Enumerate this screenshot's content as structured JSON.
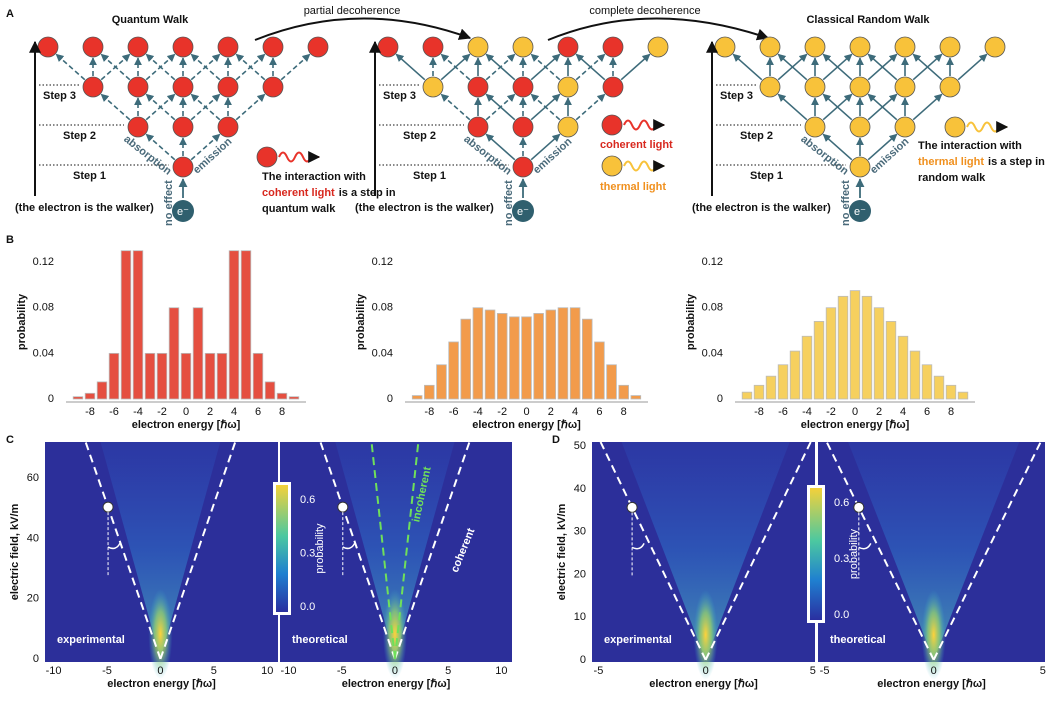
{
  "panel_a": {
    "label": "A",
    "titles": [
      "Quantum Walk",
      "Classical Random Walk"
    ],
    "transitions": [
      "partial decoherence",
      "complete decoherence"
    ],
    "lattices": [
      {
        "steps": [
          "Step 1",
          "Step 2",
          "Step 3"
        ],
        "absorption": "absorption",
        "emission": "emission",
        "no_effect": "no effect",
        "electron": "e⁻",
        "walker": "(the electron is the walker)"
      },
      {
        "steps": [
          "Step 1",
          "Step 2",
          "Step 3"
        ],
        "absorption": "absorption",
        "emission": "emission",
        "no_effect": "no effect",
        "electron": "e⁻",
        "walker": "(the electron is the walker)"
      },
      {
        "steps": [
          "Step 1",
          "Step 2",
          "Step 3"
        ],
        "absorption": "absorption",
        "emission": "emission",
        "no_effect": "no effect",
        "electron": "e⁻",
        "walker": "(the electron is the walker)"
      }
    ],
    "caption_coherent": [
      "The   interaction   with",
      "coherent light",
      "is a step in",
      "quantum walk"
    ],
    "legend": [
      "coherent light",
      "thermal light"
    ],
    "caption_thermal": [
      "The   interaction   with",
      "thermal light",
      "is a step in",
      "random walk"
    ]
  },
  "panel_b": {
    "label": "B"
  },
  "chart_data": [
    {
      "type": "bar",
      "x": [
        -9,
        -8,
        -7,
        -6,
        -5,
        -4,
        -3,
        -2,
        -1,
        0,
        1,
        2,
        3,
        4,
        5,
        6,
        7,
        8,
        9
      ],
      "values": [
        0.002,
        0.005,
        0.015,
        0.04,
        0.13,
        0.13,
        0.04,
        0.04,
        0.08,
        0.04,
        0.08,
        0.04,
        0.04,
        0.13,
        0.13,
        0.04,
        0.015,
        0.005,
        0.002
      ],
      "color": "#e0301e",
      "xlim": [
        -10,
        10
      ],
      "ylim": [
        0,
        0.135
      ],
      "xticks": [
        -8,
        -6,
        -4,
        -2,
        0,
        2,
        4,
        6,
        8
      ],
      "yticks": [
        0,
        0.04,
        0.08,
        0.12
      ],
      "xlabel": "electron energy [ℏω]",
      "ylabel": "probability"
    },
    {
      "type": "bar",
      "x": [
        -9,
        -8,
        -7,
        -6,
        -5,
        -4,
        -3,
        -2,
        -1,
        0,
        1,
        2,
        3,
        4,
        5,
        6,
        7,
        8,
        9
      ],
      "values": [
        0.003,
        0.012,
        0.03,
        0.05,
        0.07,
        0.08,
        0.078,
        0.075,
        0.072,
        0.072,
        0.075,
        0.078,
        0.08,
        0.08,
        0.07,
        0.05,
        0.03,
        0.012,
        0.003
      ],
      "color": "#f08a2c",
      "xlim": [
        -10,
        10
      ],
      "ylim": [
        0,
        0.135
      ],
      "xticks": [
        -8,
        -6,
        -4,
        -2,
        0,
        2,
        4,
        6,
        8
      ],
      "yticks": [
        0,
        0.04,
        0.08,
        0.12
      ],
      "xlabel": "electron energy [ℏω]",
      "ylabel": "probability"
    },
    {
      "type": "bar",
      "x": [
        -9,
        -8,
        -7,
        -6,
        -5,
        -4,
        -3,
        -2,
        -1,
        0,
        1,
        2,
        3,
        4,
        5,
        6,
        7,
        8,
        9
      ],
      "values": [
        0.006,
        0.012,
        0.02,
        0.03,
        0.042,
        0.055,
        0.068,
        0.08,
        0.09,
        0.095,
        0.09,
        0.08,
        0.068,
        0.055,
        0.042,
        0.03,
        0.02,
        0.012,
        0.006
      ],
      "color": "#f5c842",
      "xlim": [
        -10,
        10
      ],
      "ylim": [
        0,
        0.135
      ],
      "xticks": [
        -8,
        -6,
        -4,
        -2,
        0,
        2,
        4,
        6,
        8
      ],
      "yticks": [
        0,
        0.04,
        0.08,
        0.12
      ],
      "xlabel": "electron energy [ℏω]",
      "ylabel": "probability"
    }
  ],
  "panel_c": {
    "label": "C",
    "ylabel": "electric field, kV/m",
    "xlim": [
      -10.8,
      11
    ],
    "ylim": [
      -1,
      72
    ],
    "xticks": [
      -10,
      -5,
      0,
      5,
      10
    ],
    "yticks": [
      0,
      20,
      40,
      60
    ],
    "plots": [
      {
        "annotation": "experimental",
        "xlabel": "electron energy [ℏω]"
      },
      {
        "annotation": "theoretical",
        "xlabel": "electron energy [ℏω]",
        "lines": [
          "incoherent",
          "coherent"
        ]
      }
    ],
    "colorbar": {
      "label": "probability",
      "ticks": [
        {
          "value": 0,
          "label": "0.0"
        },
        0.3,
        0.6
      ]
    }
  },
  "panel_d": {
    "label": "D",
    "ylabel": "electric field, kV/m",
    "xlim": [
      -5.3,
      5.1
    ],
    "ylim": [
      -0.5,
      51
    ],
    "xticks": [
      -5,
      0,
      5
    ],
    "yticks": [
      0,
      10,
      20,
      30,
      40,
      50
    ],
    "plots": [
      {
        "annotation": "experimental",
        "xlabel": "electron energy [ℏω]"
      },
      {
        "annotation": "theoretical",
        "xlabel": "electron energy [ℏω]"
      }
    ],
    "colorbar": {
      "label": "probability",
      "ticks": [
        {
          "value": 0,
          "label": "0.0"
        },
        0.3,
        0.6
      ]
    }
  }
}
